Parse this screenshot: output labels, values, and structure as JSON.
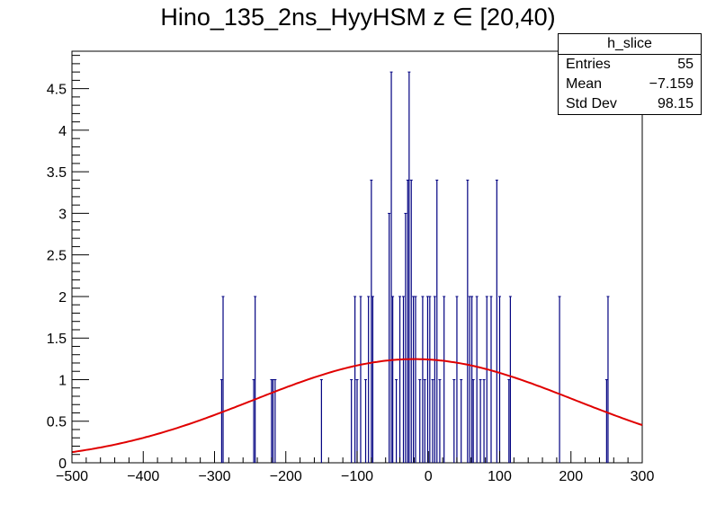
{
  "chart_data": {
    "type": "bar",
    "title": "Hino_135_2ns_HyyHSM z  ∈ [20,40)",
    "xlabel": "",
    "ylabel": "",
    "xlim": [
      -500,
      300
    ],
    "ylim": [
      0,
      4.95
    ],
    "x_ticks": [
      -500,
      -400,
      -300,
      -200,
      -100,
      0,
      100,
      200,
      300
    ],
    "y_ticks": [
      0,
      0.5,
      1,
      1.5,
      2,
      2.5,
      3,
      3.5,
      4,
      4.5
    ],
    "x_tick_labels": [
      "−500",
      "−400",
      "−300",
      "−200",
      "−100",
      "0",
      "100",
      "200",
      "300"
    ],
    "y_tick_labels": [
      "0",
      "0.5",
      "1",
      "1.5",
      "2",
      "2.5",
      "3",
      "3.5",
      "4",
      "4.5"
    ],
    "bins": {
      "x": [
        -290,
        -288,
        -245,
        -243,
        -220,
        -218,
        -215,
        -150,
        -108,
        -103,
        -100,
        -95,
        -88,
        -84,
        -80,
        -78,
        -55,
        -52,
        -50,
        -45,
        -40,
        -35,
        -32,
        -29,
        -27,
        -24,
        -21,
        -18,
        -12,
        -8,
        -5,
        -1,
        2,
        6,
        9,
        12,
        16,
        22,
        36,
        40,
        46,
        55,
        58,
        61,
        63,
        68,
        73,
        78,
        82,
        88,
        96,
        100,
        113,
        115,
        184,
        250,
        252
      ],
      "values": [
        1,
        2,
        1,
        2,
        1,
        1,
        1,
        1,
        1,
        2,
        1,
        2,
        1,
        2,
        3.4,
        2,
        3,
        4.7,
        2,
        1,
        2,
        2,
        3,
        3.4,
        4.7,
        3.4,
        2,
        2,
        1,
        2,
        1,
        2,
        2,
        1,
        2,
        3.4,
        1,
        2,
        1,
        2,
        1,
        3.4,
        2,
        2,
        1,
        2,
        1,
        1,
        2,
        2,
        3.4,
        2,
        1,
        2,
        2,
        1,
        2
      ]
    },
    "fit": {
      "type": "gaussian",
      "amplitude": 1.247,
      "mean": -20,
      "sigma": 225,
      "color": "#e00000"
    },
    "bar_color": "#000080",
    "legend_position": "top-right",
    "stats": {
      "header": "h_slice",
      "rows": [
        {
          "label": "Entries",
          "value": "55"
        },
        {
          "label": "Mean",
          "value": "−7.159"
        },
        {
          "label": "Std Dev",
          "value": "98.15"
        }
      ]
    }
  }
}
